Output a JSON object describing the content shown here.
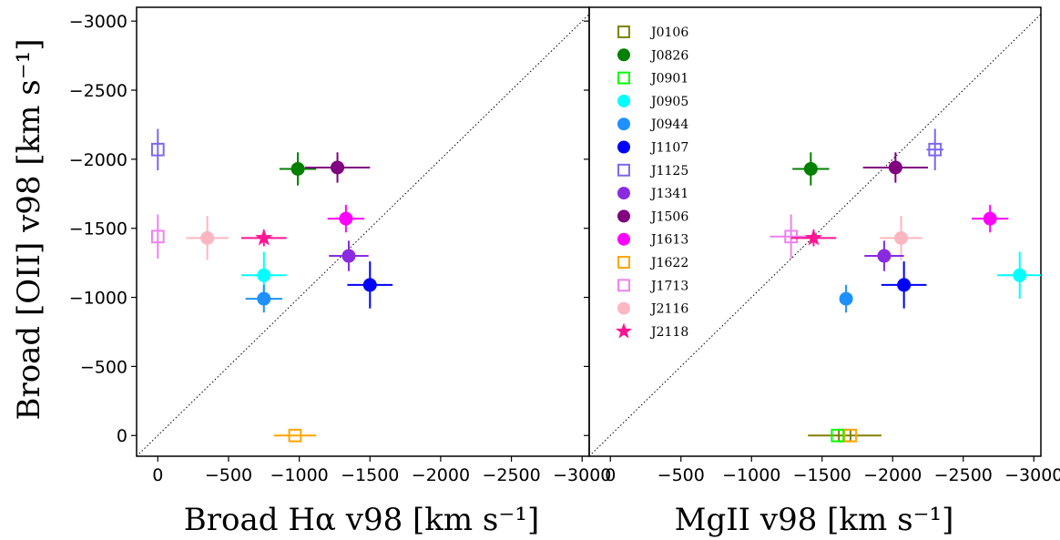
{
  "chart_data": [
    {
      "type": "scatter",
      "xlabel": "Broad Hα v98 [km s⁻¹]",
      "ylabel": "Broad [OII] v98 [km s⁻¹]",
      "xlim": [
        150,
        -3050
      ],
      "ylim": [
        150,
        -3100
      ],
      "xticks": [
        0,
        -500,
        -1000,
        -1500,
        -2000,
        -2500,
        -3000
      ],
      "yticks": [
        0,
        -500,
        -1000,
        -1500,
        -2000,
        -2500,
        -3000
      ],
      "xtick_labels": [
        "0",
        "−500",
        "−1000",
        "−1500",
        "−2000",
        "−2500",
        "−3000"
      ],
      "ytick_labels": [
        "0",
        "−500",
        "−1000",
        "−1500",
        "−2000",
        "−2500",
        "−3000"
      ],
      "one_to_one_line": true,
      "grid": false,
      "points": [
        {
          "name": "J0826",
          "x": -990,
          "y": -1930,
          "xerr": 130,
          "yerr": 120
        },
        {
          "name": "J1506",
          "x": -1270,
          "y": -1940,
          "xerr": 230,
          "yerr": 110
        },
        {
          "name": "J1125",
          "x": 0,
          "y": -2070,
          "xerr": 0,
          "yerr": 150
        },
        {
          "name": "J1613",
          "x": -1330,
          "y": -1570,
          "xerr": 130,
          "yerr": 100
        },
        {
          "name": "J1713",
          "x": 0,
          "y": -1440,
          "xerr": 0,
          "yerr": 160
        },
        {
          "name": "J2116",
          "x": -350,
          "y": -1430,
          "xerr": 150,
          "yerr": 160
        },
        {
          "name": "J2118",
          "x": -750,
          "y": -1430,
          "xerr": 160,
          "yerr": 60
        },
        {
          "name": "J1341",
          "x": -1350,
          "y": -1300,
          "xerr": 140,
          "yerr": 110
        },
        {
          "name": "J0905",
          "x": -750,
          "y": -1160,
          "xerr": 160,
          "yerr": 170
        },
        {
          "name": "J1107",
          "x": -1500,
          "y": -1090,
          "xerr": 160,
          "yerr": 170
        },
        {
          "name": "J0944",
          "x": -750,
          "y": -990,
          "xerr": 130,
          "yerr": 100
        },
        {
          "name": "J1622",
          "x": -970,
          "y": 0,
          "xerr": 150,
          "yerr": 0
        }
      ]
    },
    {
      "type": "scatter",
      "xlabel": "MgII v98 [km s⁻¹]",
      "ylabel": "",
      "xlim": [
        150,
        -3050
      ],
      "ylim": [
        150,
        -3100
      ],
      "xticks": [
        0,
        -500,
        -1000,
        -1500,
        -2000,
        -2500,
        -3000
      ],
      "xtick_labels": [
        "0",
        "−500",
        "−1000",
        "−1500",
        "−2000",
        "−2500",
        "−3000"
      ],
      "one_to_one_line": true,
      "grid": false,
      "legend_position": "top-left",
      "points": [
        {
          "name": "J0826",
          "x": -1420,
          "y": -1930,
          "xerr": 130,
          "yerr": 120
        },
        {
          "name": "J1506",
          "x": -2020,
          "y": -1940,
          "xerr": 230,
          "yerr": 110
        },
        {
          "name": "J1125",
          "x": -2300,
          "y": -2070,
          "xerr": 60,
          "yerr": 150
        },
        {
          "name": "J1613",
          "x": -2690,
          "y": -1570,
          "xerr": 130,
          "yerr": 100
        },
        {
          "name": "J1713",
          "x": -1280,
          "y": -1440,
          "xerr": 150,
          "yerr": 160
        },
        {
          "name": "J2116",
          "x": -2060,
          "y": -1430,
          "xerr": 150,
          "yerr": 160
        },
        {
          "name": "J2118",
          "x": -1440,
          "y": -1430,
          "xerr": 160,
          "yerr": 60
        },
        {
          "name": "J1341",
          "x": -1940,
          "y": -1300,
          "xerr": 140,
          "yerr": 110
        },
        {
          "name": "J0905",
          "x": -2900,
          "y": -1160,
          "xerr": 160,
          "yerr": 170
        },
        {
          "name": "J1107",
          "x": -2080,
          "y": -1090,
          "xerr": 160,
          "yerr": 170
        },
        {
          "name": "J0944",
          "x": -1670,
          "y": -990,
          "xerr": 40,
          "yerr": 100
        },
        {
          "name": "J0106",
          "x": -1660,
          "y": 0,
          "xerr": 260,
          "yerr": 0
        },
        {
          "name": "J1622",
          "x": -1700,
          "y": 0,
          "xerr": 0,
          "yerr": 0
        },
        {
          "name": "J0901",
          "x": -1610,
          "y": 0,
          "xerr": 0,
          "yerr": 0
        }
      ]
    }
  ],
  "legend": [
    {
      "name": "J0106",
      "color": "#808000",
      "marker": "open-square"
    },
    {
      "name": "J0826",
      "color": "#008000",
      "marker": "circle"
    },
    {
      "name": "J0901",
      "color": "#00ff00",
      "marker": "open-square"
    },
    {
      "name": "J0905",
      "color": "#00ffff",
      "marker": "circle"
    },
    {
      "name": "J0944",
      "color": "#1e90ff",
      "marker": "circle"
    },
    {
      "name": "J1107",
      "color": "#0000ff",
      "marker": "circle"
    },
    {
      "name": "J1125",
      "color": "#7b68ee",
      "marker": "open-square"
    },
    {
      "name": "J1341",
      "color": "#8a2be2",
      "marker": "circle"
    },
    {
      "name": "J1506",
      "color": "#800080",
      "marker": "circle"
    },
    {
      "name": "J1613",
      "color": "#ff00ff",
      "marker": "circle"
    },
    {
      "name": "J1622",
      "color": "#ffa500",
      "marker": "open-square"
    },
    {
      "name": "J1713",
      "color": "#ee82ee",
      "marker": "open-square"
    },
    {
      "name": "J2116",
      "color": "#ffb6c1",
      "marker": "circle"
    },
    {
      "name": "J2118",
      "color": "#ff1493",
      "marker": "star"
    }
  ]
}
